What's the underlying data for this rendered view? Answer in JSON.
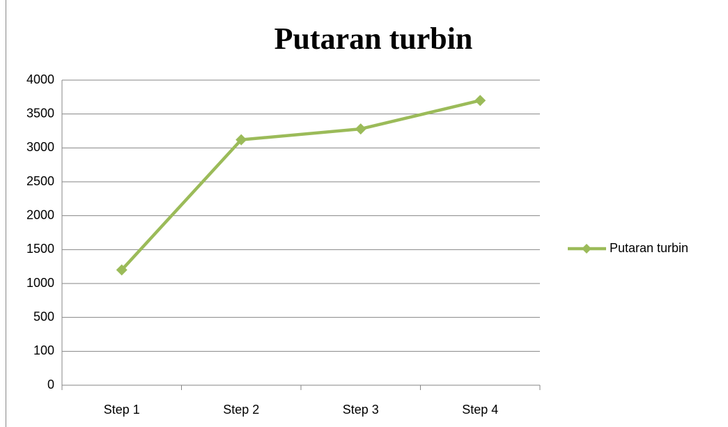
{
  "chart_data": {
    "type": "line",
    "title": "Putaran turbin",
    "categories": [
      "Step 1",
      "Step 2",
      "Step 3",
      "Step 4"
    ],
    "series": [
      {
        "name": "Putaran turbin",
        "color": "#9bbb59",
        "values": [
          1200,
          3120,
          3280,
          3700
        ]
      }
    ],
    "ylim": [
      0,
      4000
    ],
    "yticks": [
      0,
      100,
      500,
      1000,
      1500,
      2000,
      2500,
      3000,
      3500,
      4000
    ],
    "grid": true,
    "legend": "right"
  }
}
